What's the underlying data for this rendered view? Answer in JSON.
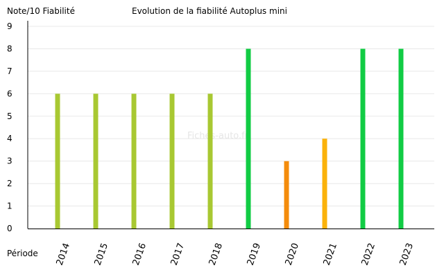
{
  "chart_data": {
    "type": "bar",
    "title": "Evolution de la fiabilité Autoplus mini",
    "ylabel": "Note/10 Fiabilité",
    "xlabel": "Période",
    "watermark": "Fiches-auto.fr",
    "categories": [
      "2014",
      "2015",
      "2016",
      "2017",
      "2018",
      "2019",
      "2020",
      "2021",
      "2022",
      "2023"
    ],
    "values": [
      6,
      6,
      6,
      6,
      6,
      8,
      3,
      4,
      8,
      8
    ],
    "bar_colors": [
      "#a8c832",
      "#a8c832",
      "#a8c832",
      "#a8c832",
      "#a8c832",
      "#11cc44",
      "#f48c0c",
      "#fbb20a",
      "#11cc44",
      "#11cc44"
    ],
    "ylim": [
      0,
      9
    ],
    "yticks": [
      0,
      1,
      2,
      3,
      4,
      5,
      6,
      7,
      8,
      9
    ],
    "grid": true,
    "grid_color": "#e8e8e8"
  }
}
